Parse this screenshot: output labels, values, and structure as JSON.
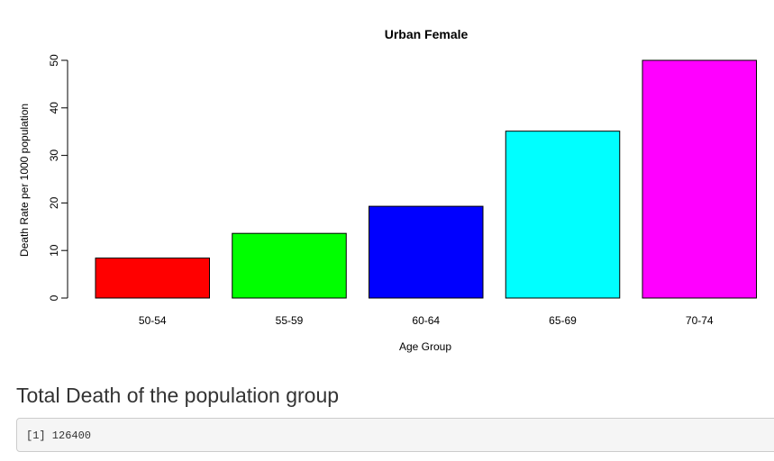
{
  "chart_data": {
    "type": "bar",
    "title": "Urban Female",
    "xlabel": "Age Group",
    "ylabel": "Death Rate per 1000 population",
    "categories": [
      "50-54",
      "55-59",
      "60-64",
      "65-69",
      "70-74"
    ],
    "values": [
      8.4,
      13.6,
      19.3,
      35.1,
      50.0
    ],
    "colors": [
      "#ff0000",
      "#00ff00",
      "#0000ff",
      "#00ffff",
      "#ff00ff"
    ],
    "ylim": [
      0,
      50
    ],
    "yticks": [
      0,
      10,
      20,
      30,
      40,
      50
    ],
    "grid": false,
    "legend": "none"
  },
  "section": {
    "heading": "Total Death of the population group"
  },
  "output": {
    "text": "[1] 126400"
  }
}
